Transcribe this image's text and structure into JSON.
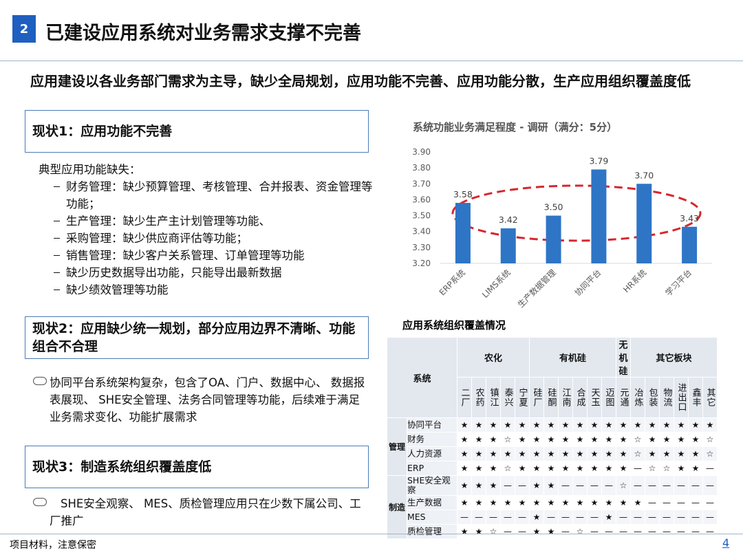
{
  "header": {
    "number": "2",
    "title": "已建设应用系统对业务需求支撑不完善"
  },
  "subtitle": "应用建设以各业务部门需求为主导，缺少全局规划，应用功能不完善、应用功能分散，生产应用组织覆盖度低",
  "status1": {
    "heading": "现状1：应用功能不完善",
    "intro": "典型应用功能缺失：",
    "items": [
      "财务管理：缺少预算管理、考核管理、合并报表、资金管理等功能；",
      "生产管理：缺少生产主计划管理等功能、",
      "采购管理：缺少供应商评估等功能；",
      "销售管理：缺少客户关系管理、订单管理等功能",
      "缺少历史数据导出功能，只能导出最新数据",
      "缺少绩效管理等功能"
    ]
  },
  "status2": {
    "heading": "现状2：应用缺少统一规划，部分应用边界不清晰、功能组合不合理",
    "text": "协同平台系统架构复杂，包含了OA、门户、数据中心、 数据报表展现、 SHE安全管理、法务合同管理等功能，后续难于满足业务需求变化、功能扩展需求"
  },
  "status3": {
    "heading": "现状3：制造系统组织覆盖度低",
    "text": "SHE安全观察、 MES、质检管理应用只在少数下属公司、工厂推广"
  },
  "chart_data": {
    "type": "bar",
    "title": "系统功能业务满足程度 - 调研（满分：5分）",
    "categories": [
      "ERP系统",
      "LIMS系统",
      "生产数据管理",
      "协同平台",
      "HR系统",
      "学习平台"
    ],
    "values": [
      3.58,
      3.42,
      3.5,
      3.79,
      3.7,
      3.43
    ],
    "value_labels": [
      "3.58",
      "3.42",
      "3.50",
      "3.79",
      "3.70",
      "3.43"
    ],
    "color": "#2e75c6",
    "ylim": [
      3.2,
      3.9
    ],
    "yticks": [
      {
        "value": 3.2,
        "label": "3.20"
      },
      {
        "value": 3.3,
        "label": "3.30"
      },
      {
        "value": 3.4,
        "label": "3.40"
      },
      {
        "value": 3.5,
        "label": "3.50"
      },
      {
        "value": 3.6,
        "label": "3.60"
      },
      {
        "value": 3.7,
        "label": "3.70"
      },
      {
        "value": 3.8,
        "label": "3.80"
      },
      {
        "value": 3.9,
        "label": "3.90"
      }
    ],
    "grid": false
  },
  "table": {
    "caption": "应用系统组织覆盖情况",
    "system_header": "系统",
    "groups": [
      {
        "name": "农化",
        "columns": [
          "二厂",
          "农药",
          "镇江",
          "泰兴",
          "宁夏"
        ]
      },
      {
        "name": "有机硅",
        "columns": [
          "硅厂",
          "硅酮",
          "江南",
          "合成",
          "天玉",
          "迈图"
        ]
      },
      {
        "name": "无机硅",
        "columns": [
          "元通"
        ]
      },
      {
        "name": "其它板块",
        "columns": [
          "冶炼",
          "包装",
          "物流",
          "进出口",
          "鑫丰",
          "其它"
        ]
      }
    ],
    "sections": [
      {
        "name": "管理",
        "rows": [
          {
            "label": "协同平台",
            "cells": [
              "★",
              "★",
              "★",
              "★",
              "★",
              "★",
              "★",
              "★",
              "★",
              "★",
              "★",
              "★",
              "★",
              "★",
              "★",
              "★",
              "★",
              "★"
            ]
          },
          {
            "label": "财务",
            "cells": [
              "★",
              "★",
              "★",
              "☆",
              "★",
              "★",
              "★",
              "★",
              "★",
              "★",
              "★",
              "★",
              "☆",
              "★",
              "★",
              "★",
              "★",
              "☆"
            ]
          },
          {
            "label": "人力资源",
            "cells": [
              "★",
              "★",
              "★",
              "★",
              "★",
              "★",
              "★",
              "★",
              "★",
              "★",
              "★",
              "★",
              "☆",
              "★",
              "★",
              "★",
              "★",
              "☆"
            ]
          },
          {
            "label": "ERP",
            "cells": [
              "★",
              "★",
              "★",
              "☆",
              "★",
              "★",
              "★",
              "★",
              "★",
              "★",
              "★",
              "★",
              "—",
              "☆",
              "☆",
              "★",
              "★",
              "—"
            ]
          }
        ]
      },
      {
        "name": "制造",
        "rows": [
          {
            "label": "SHE安全观察",
            "cells": [
              "★",
              "★",
              "★",
              "—",
              "—",
              "★",
              "★",
              "—",
              "—",
              "—",
              "—",
              "☆",
              "—",
              "—",
              "—",
              "—",
              "—",
              "—"
            ]
          },
          {
            "label": "生产数据",
            "cells": [
              "★",
              "★",
              "★",
              "★",
              "★",
              "★",
              "★",
              "★",
              "★",
              "★",
              "★",
              "★",
              "★",
              "—",
              "—",
              "—",
              "—",
              "—"
            ]
          },
          {
            "label": "MES",
            "cells": [
              "—",
              "—",
              "—",
              "—",
              "—",
              "★",
              "—",
              "—",
              "—",
              "—",
              "★",
              "—",
              "—",
              "—",
              "—",
              "—",
              "—",
              "—"
            ]
          },
          {
            "label": "质检管理",
            "cells": [
              "★",
              "★",
              "☆",
              "—",
              "—",
              "★",
              "★",
              "—",
              "☆",
              "—",
              "—",
              "—",
              "—",
              "—",
              "—",
              "—",
              "—",
              "—"
            ]
          }
        ]
      }
    ]
  },
  "footer": {
    "note": "项目材料，注意保密",
    "page": "4"
  }
}
